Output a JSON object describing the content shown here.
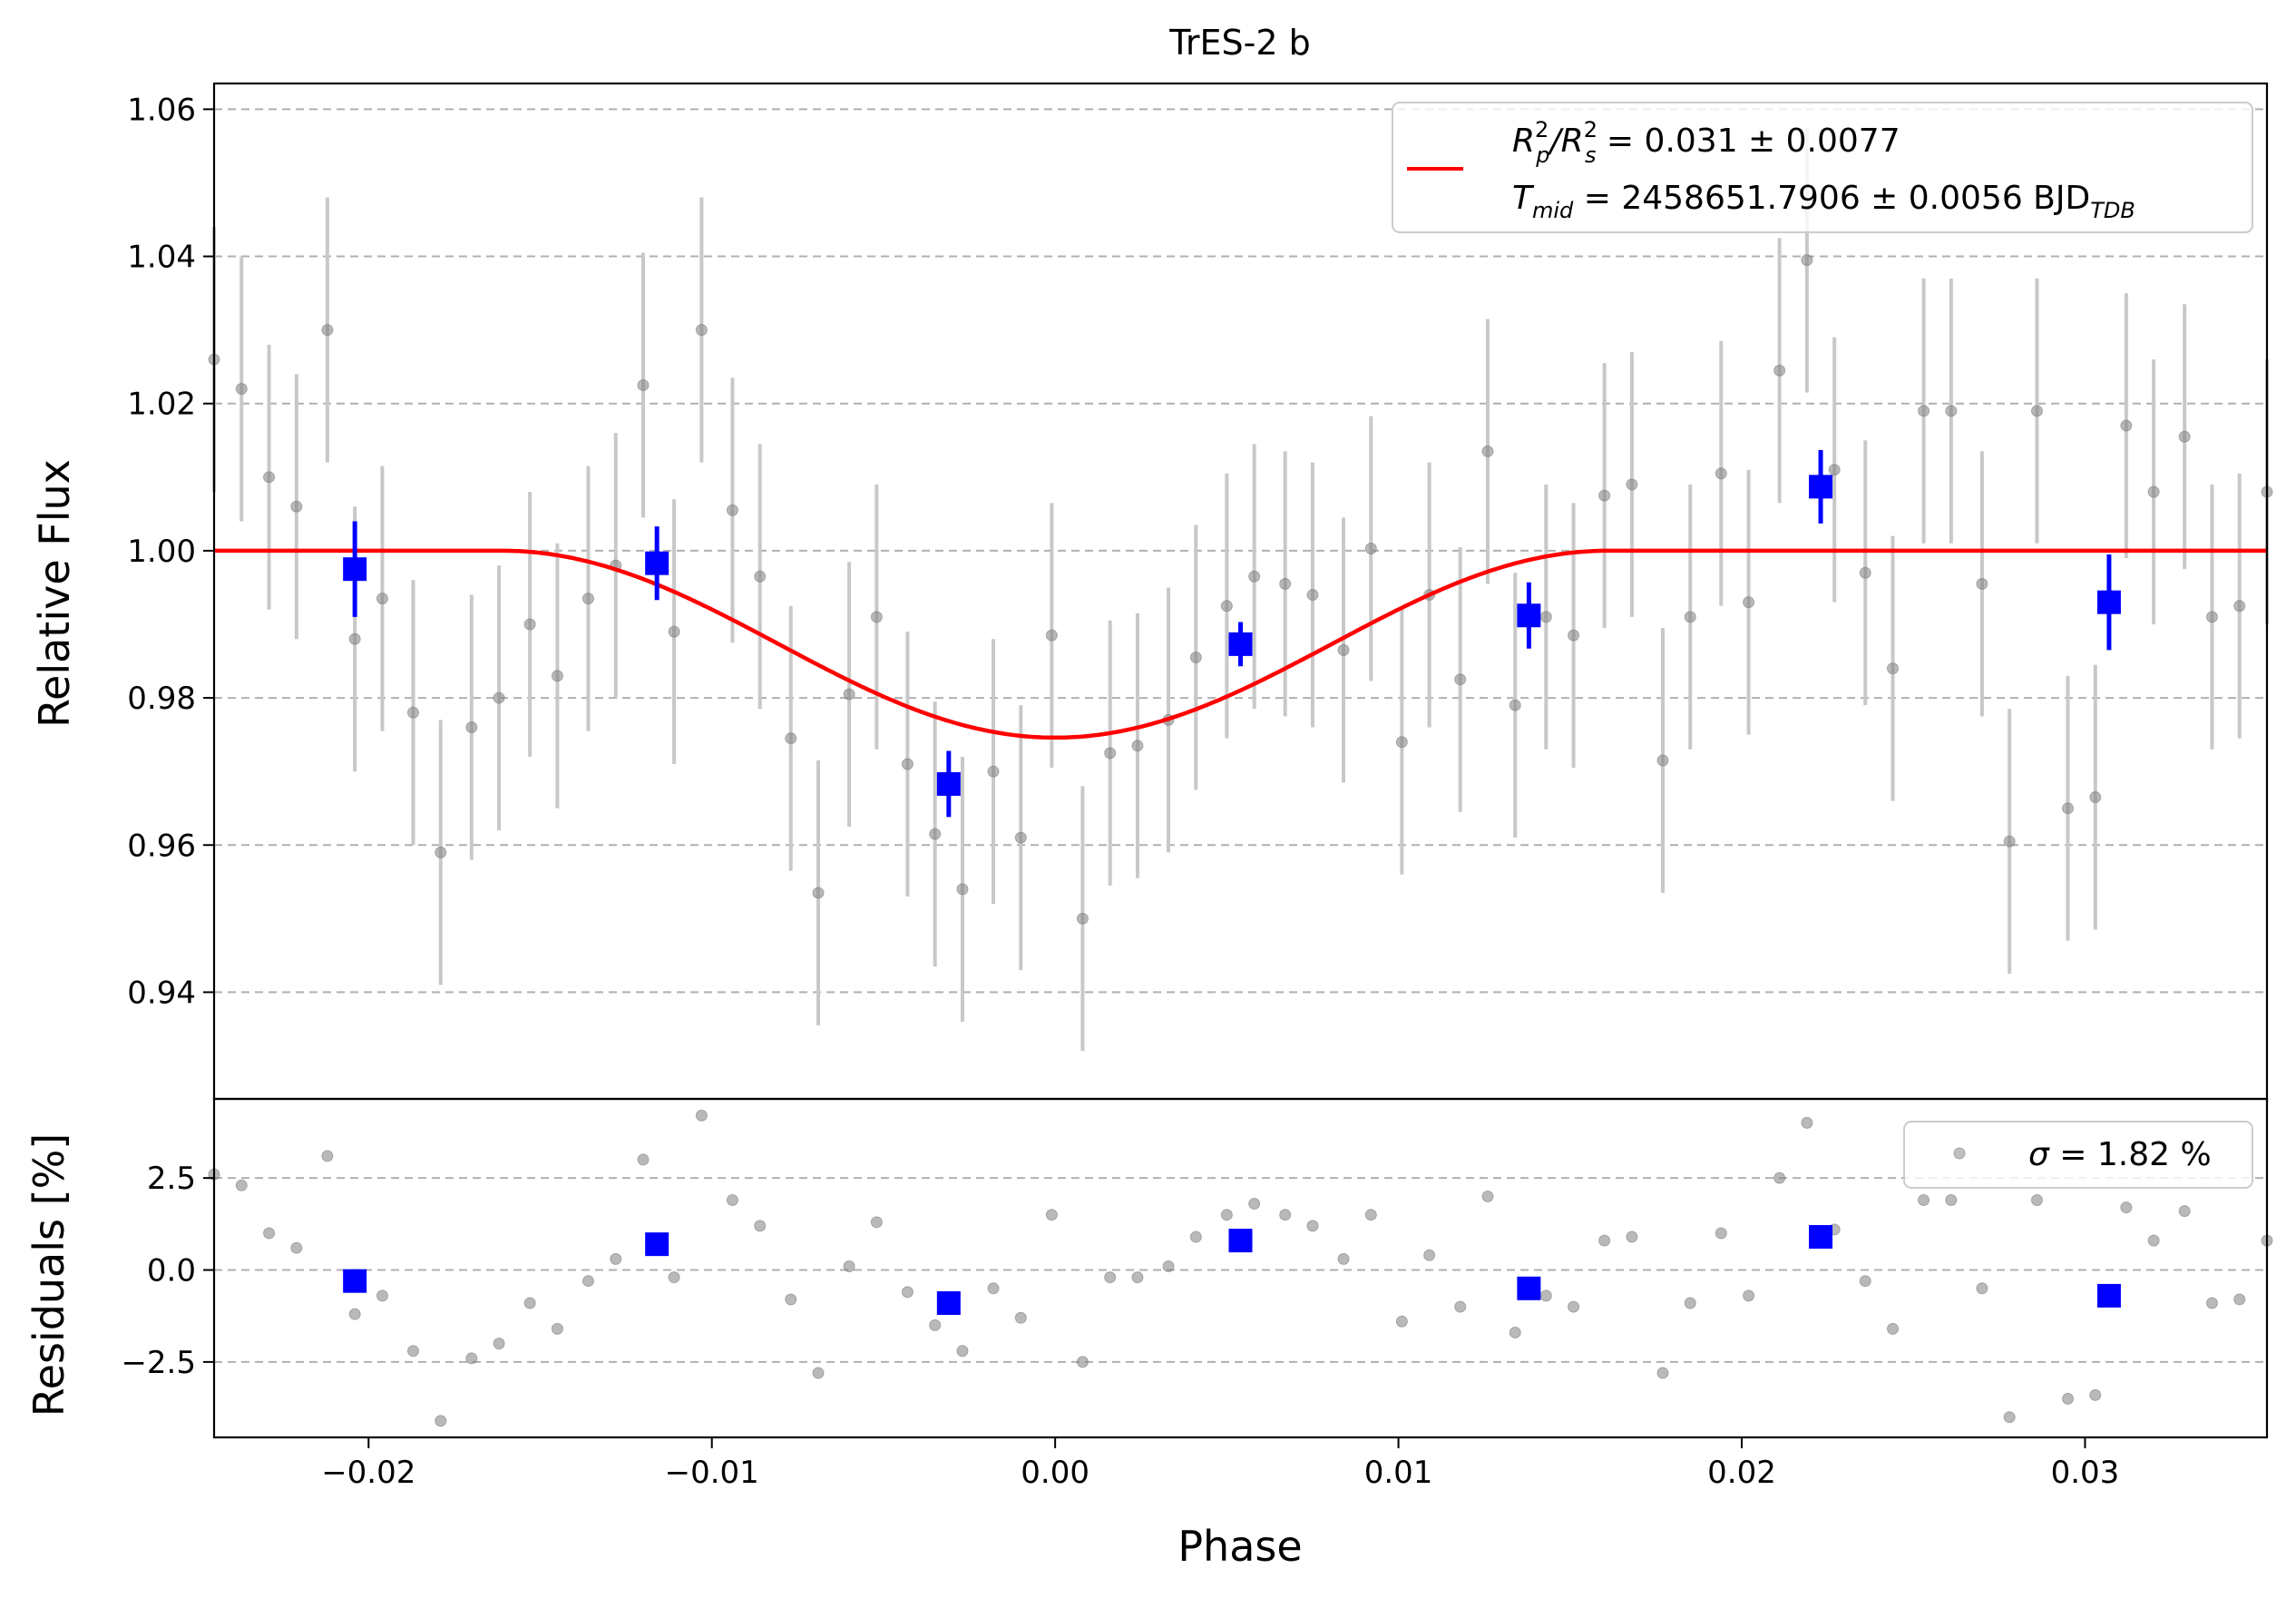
{
  "chart_data": [
    {
      "type": "scatter",
      "panel": "light-curve",
      "title": "TrES-2 b",
      "xlabel": "",
      "ylabel": "Relative Flux",
      "xlim": [
        -0.0245,
        0.0353
      ],
      "ylim": [
        0.9255,
        1.0635
      ],
      "grid": "horizontal dashed",
      "legend_position": "top-right",
      "yticks": [
        0.94,
        0.96,
        0.98,
        1.0,
        1.02,
        1.04,
        1.06
      ],
      "ytick_labels": [
        "0.94",
        "0.96",
        "0.98",
        "1.00",
        "1.02",
        "1.04",
        "1.06"
      ],
      "legend": {
        "line1": {
          "prefix": "R",
          "sup1": "2",
          "sub1": "p",
          "mid": "/R",
          "sup2": "2",
          "sub2": "s",
          "value": " = 0.031 ± 0.0077"
        },
        "line2": {
          "prefix": "T",
          "sub": "mid",
          "value": " = 2458651.7906 ± 0.0056 BJD",
          "unit_sub": "TDB"
        }
      },
      "series": [
        {
          "role": "raw",
          "color": "#808080",
          "errcolor": "#c8c8c8",
          "x": [
            -0.0245,
            -0.0237,
            -0.0229,
            -0.0221,
            -0.0212,
            -0.0204,
            -0.0196,
            -0.0187,
            -0.0179,
            -0.017,
            -0.0162,
            -0.0153,
            -0.0145,
            -0.0136,
            -0.0128,
            -0.012,
            -0.0111,
            -0.0103,
            -0.0094,
            -0.0086,
            -0.0077,
            -0.0069,
            -0.006,
            -0.0052,
            -0.0043,
            -0.0035,
            -0.0027,
            -0.0018,
            -0.001,
            -0.0001,
            0.0008,
            0.0016,
            0.0024,
            0.0033,
            0.0041,
            0.005,
            0.0058,
            0.0067,
            0.0075,
            0.0084,
            0.0092,
            0.0101,
            0.0109,
            0.0118,
            0.0126,
            0.0134,
            0.0143,
            0.0151,
            0.016,
            0.0168,
            0.0177,
            0.0185,
            0.0194,
            0.0202,
            0.0211,
            0.0219,
            0.0227,
            0.0236,
            0.0244,
            0.0253,
            0.0261,
            0.027,
            0.0278,
            0.0286,
            0.0295,
            0.0303,
            0.0312,
            0.032,
            0.0329,
            0.0337,
            0.0345,
            0.0353
          ],
          "y": [
            1.026,
            1.022,
            1.01,
            1.006,
            1.03,
            0.988,
            0.9935,
            0.978,
            0.959,
            0.976,
            0.98,
            0.99,
            0.983,
            0.9935,
            0.998,
            1.0225,
            0.989,
            1.03,
            1.0055,
            0.9965,
            0.9745,
            0.9535,
            0.9805,
            0.991,
            0.971,
            0.9615,
            0.954,
            0.97,
            0.961,
            0.9885,
            0.95,
            0.9725,
            0.9735,
            0.977,
            0.9855,
            0.9925,
            0.9965,
            0.9955,
            0.994,
            0.9865,
            1.0003,
            0.974,
            0.994,
            0.9825,
            1.0135,
            0.979,
            0.991,
            0.9885,
            1.0075,
            1.009,
            0.9715,
            0.991,
            1.0105,
            0.993,
            1.0245,
            1.0395,
            1.011,
            0.997,
            0.984,
            1.019,
            1.019,
            0.9955,
            0.9605,
            1.019,
            0.965,
            0.9665,
            1.017,
            1.008,
            1.0155,
            0.991,
            0.9925,
            1.008
          ],
          "yerr": [
            0.018,
            0.018,
            0.018,
            0.018,
            0.018,
            0.018,
            0.018,
            0.018,
            0.018,
            0.018,
            0.018,
            0.018,
            0.018,
            0.018,
            0.018,
            0.018,
            0.018,
            0.018,
            0.018,
            0.018,
            0.018,
            0.018,
            0.018,
            0.018,
            0.018,
            0.018,
            0.018,
            0.018,
            0.018,
            0.018,
            0.018,
            0.018,
            0.018,
            0.018,
            0.018,
            0.018,
            0.018,
            0.018,
            0.018,
            0.018,
            0.018,
            0.018,
            0.018,
            0.018,
            0.018,
            0.018,
            0.018,
            0.018,
            0.018,
            0.018,
            0.018,
            0.018,
            0.018,
            0.018,
            0.018,
            0.018,
            0.018,
            0.018,
            0.018,
            0.018,
            0.018,
            0.018,
            0.018,
            0.018,
            0.018,
            0.018,
            0.018,
            0.018,
            0.018,
            0.018,
            0.018,
            0.018
          ]
        },
        {
          "role": "binned",
          "color": "#0000ff",
          "x": [
            -0.0204,
            -0.0116,
            -0.0031,
            0.0054,
            0.0138,
            0.0223,
            0.0307
          ],
          "y": [
            0.9975,
            0.9983,
            0.9683,
            0.9873,
            0.9912,
            1.0087,
            0.993
          ],
          "yerr": [
            0.0065,
            0.005,
            0.0045,
            0.003,
            0.0045,
            0.005,
            0.0065
          ]
        },
        {
          "name": "transit model",
          "role": "model",
          "color": "#ff0000",
          "depth": 0.0254,
          "t_start": -0.0161,
          "t_end": 0.0161
        }
      ]
    },
    {
      "type": "scatter",
      "panel": "residuals",
      "xlabel": "Phase",
      "ylabel": "Residuals [%]",
      "xlim": [
        -0.0245,
        0.0353
      ],
      "ylim": [
        -4.55,
        4.65
      ],
      "grid": "horizontal dashed",
      "legend_position": "top-right",
      "legend": {
        "symbol": "σ",
        "value": " = 1.82 %"
      },
      "xticks": [
        -0.02,
        -0.01,
        0.0,
        0.01,
        0.02,
        0.03
      ],
      "xtick_labels": [
        "−0.02",
        "−0.01",
        "0.00",
        "0.01",
        "0.02",
        "0.03"
      ],
      "yticks": [
        -2.5,
        0.0,
        2.5
      ],
      "ytick_labels": [
        "−2.5",
        "0.0",
        "2.5"
      ],
      "series": [
        {
          "role": "raw",
          "color": "#808080",
          "x": [
            -0.0245,
            -0.0237,
            -0.0229,
            -0.0221,
            -0.0212,
            -0.0204,
            -0.0196,
            -0.0187,
            -0.0179,
            -0.017,
            -0.0162,
            -0.0153,
            -0.0145,
            -0.0136,
            -0.0128,
            -0.012,
            -0.0111,
            -0.0103,
            -0.0094,
            -0.0086,
            -0.0077,
            -0.0069,
            -0.006,
            -0.0052,
            -0.0043,
            -0.0035,
            -0.0027,
            -0.0018,
            -0.001,
            -0.0001,
            0.0008,
            0.0016,
            0.0024,
            0.0033,
            0.0041,
            0.005,
            0.0058,
            0.0067,
            0.0075,
            0.0084,
            0.0092,
            0.0101,
            0.0109,
            0.0118,
            0.0126,
            0.0134,
            0.0143,
            0.0151,
            0.016,
            0.0168,
            0.0177,
            0.0185,
            0.0194,
            0.0202,
            0.0211,
            0.0219,
            0.0227,
            0.0236,
            0.0244,
            0.0253,
            0.0261,
            0.027,
            0.0278,
            0.0286,
            0.0295,
            0.0303,
            0.0312,
            0.032,
            0.0329,
            0.0337,
            0.0345,
            0.0353
          ],
          "y": [
            2.6,
            2.3,
            1.0,
            0.6,
            3.1,
            -1.2,
            -0.7,
            -2.2,
            -4.1,
            -2.4,
            -2.0,
            -0.9,
            -1.6,
            -0.3,
            0.3,
            3.0,
            -0.2,
            4.2,
            1.9,
            1.2,
            -0.8,
            -2.8,
            0.1,
            1.3,
            -0.6,
            -1.5,
            -2.2,
            -0.5,
            -1.3,
            1.5,
            -2.5,
            -0.2,
            -0.2,
            0.1,
            0.9,
            1.5,
            1.8,
            1.5,
            1.2,
            0.3,
            1.5,
            -1.4,
            0.4,
            -1.0,
            2.0,
            -1.7,
            -0.7,
            -1.0,
            0.8,
            0.9,
            -2.8,
            -0.9,
            1.0,
            -0.7,
            2.5,
            4.0,
            1.1,
            -0.3,
            -1.6,
            1.9,
            1.9,
            -0.5,
            -4.0,
            1.9,
            -3.5,
            -3.4,
            1.7,
            0.8,
            1.6,
            -0.9,
            -0.8,
            0.8
          ]
        },
        {
          "role": "binned",
          "color": "#0000ff",
          "x": [
            -0.0204,
            -0.0116,
            -0.0031,
            0.0054,
            0.0138,
            0.0223,
            0.0307
          ],
          "y": [
            -0.3,
            0.7,
            -0.9,
            0.8,
            -0.5,
            0.9,
            -0.7
          ]
        }
      ]
    }
  ]
}
